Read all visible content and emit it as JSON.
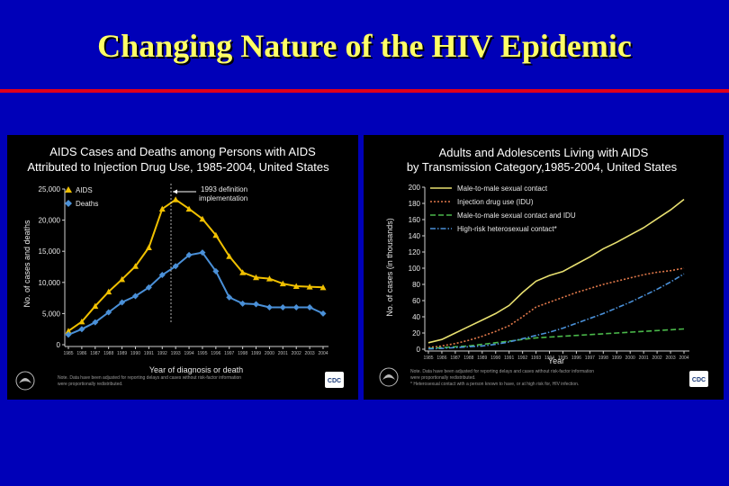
{
  "slide": {
    "title": "Changing Nature of the HIV Epidemic"
  },
  "colors": {
    "background": "#0000b8",
    "title": "#ffff66",
    "rule": "#e0001a"
  },
  "chart_data": [
    {
      "type": "line",
      "title": "AIDS Cases and Deaths among Persons with AIDS",
      "subtitle": "Attributed to Injection Drug Use, 1985-2004, United States",
      "xlabel": "Year of diagnosis or death",
      "ylabel": "No. of cases and deaths",
      "ylim": [
        0,
        25000
      ],
      "yticks": [
        "0",
        "5,000",
        "10,000",
        "15,000",
        "20,000",
        "25,000"
      ],
      "categories": [
        "1985",
        "1986",
        "1987",
        "1988",
        "1989",
        "1990",
        "1991",
        "1992",
        "1993",
        "1994",
        "1995",
        "1996",
        "1997",
        "1998",
        "1999",
        "2000",
        "2001",
        "2002",
        "2003",
        "2004"
      ],
      "series": [
        {
          "name": "AIDS",
          "color": "#f0c000",
          "marker": "triangle",
          "values": [
            2200,
            3700,
            6200,
            8500,
            10500,
            12600,
            15600,
            21800,
            23300,
            21800,
            20200,
            17600,
            14200,
            11600,
            10800,
            10600,
            9800,
            9400,
            9300,
            9200
          ]
        },
        {
          "name": "Deaths",
          "color": "#4a90d8",
          "marker": "diamond",
          "values": [
            1600,
            2500,
            3600,
            5200,
            6800,
            7800,
            9200,
            11200,
            12600,
            14400,
            14800,
            11800,
            7600,
            6600,
            6500,
            6000,
            6000,
            6000,
            6000,
            5000
          ]
        }
      ],
      "annotation": {
        "text1": "1993 definition",
        "text2": "implementation",
        "x": "1993"
      },
      "note_line1": "Note. Data have been adjusted for reporting delays and cases without risk-factor information",
      "note_line2": "were proportionally redistributed.",
      "badge": "CDC"
    },
    {
      "type": "line",
      "title": "Adults and Adolescents Living with AIDS",
      "subtitle": "by Transmission Category,1985-2004, United States",
      "xlabel": "Year",
      "ylabel": "No. of cases (in thousands)",
      "ylim": [
        0,
        200
      ],
      "yticks": [
        "0",
        "20",
        "40",
        "60",
        "80",
        "100",
        "120",
        "140",
        "160",
        "180",
        "200"
      ],
      "categories": [
        "1985",
        "1986",
        "1987",
        "1988",
        "1989",
        "1990",
        "1991",
        "1992",
        "1993",
        "1994",
        "1995",
        "1996",
        "1997",
        "1998",
        "1999",
        "2000",
        "2001",
        "2002",
        "2003",
        "2004"
      ],
      "series": [
        {
          "name": "Male-to-male sexual contact",
          "color": "#e8e070",
          "dash": "solid",
          "values": [
            8,
            12,
            20,
            28,
            36,
            44,
            54,
            70,
            84,
            91,
            96,
            105,
            114,
            124,
            132,
            141,
            150,
            161,
            172,
            185
          ]
        },
        {
          "name": "Injection drug use (IDU)",
          "color": "#e0784a",
          "dash": "dot",
          "values": [
            2,
            4,
            7,
            11,
            16,
            22,
            29,
            40,
            52,
            58,
            64,
            70,
            75,
            80,
            84,
            88,
            92,
            95,
            97,
            100
          ]
        },
        {
          "name": "Male-to-male sexual contact and IDU",
          "color": "#4ab84a",
          "dash": "dash",
          "values": [
            1,
            2,
            3,
            4,
            6,
            8,
            10,
            12,
            14,
            15,
            16,
            17,
            18,
            19,
            20,
            21,
            22,
            23,
            24,
            25
          ]
        },
        {
          "name": "High-risk heterosexual contact*",
          "color": "#4a90d8",
          "dash": "dashdot",
          "values": [
            0.5,
            1,
            2,
            3,
            4,
            6,
            9,
            13,
            17,
            21,
            26,
            32,
            38,
            44,
            51,
            58,
            66,
            74,
            83,
            93
          ]
        }
      ],
      "note_line1": "Note. Data have been adjusted for reporting delays and cases without risk-factor information",
      "note_line2": "were proportionally redistributed.",
      "note_line3": "* Heterosexual contact with a person known to have, or at high risk for, HIV infection.",
      "badge": "CDC"
    }
  ]
}
